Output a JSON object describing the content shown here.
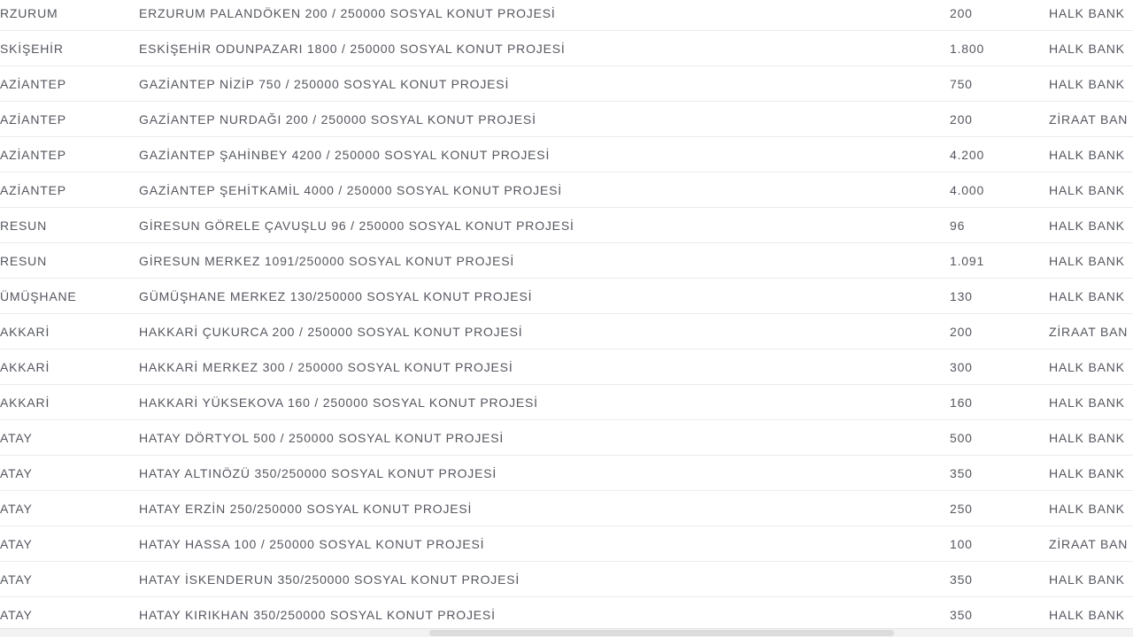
{
  "page": {
    "background_color": "#ffffff",
    "text_color": "#55575f",
    "row_border_color": "#ebebeb"
  },
  "table": {
    "description": "Social housing project list (cropped view): province, project name, unit count, bank",
    "rows": [
      {
        "city": "RZURUM",
        "project": "ERZURUM PALANDÖKEN 200 / 250000 SOSYAL KONUT PROJESİ",
        "count": "200",
        "bank": "HALK BANK"
      },
      {
        "city": "SKİŞEHİR",
        "project": "ESKİŞEHİR ODUNPAZARI 1800 / 250000 SOSYAL KONUT PROJESİ",
        "count": "1.800",
        "bank": "HALK BANK"
      },
      {
        "city": "AZİANTEP",
        "project": "GAZİANTEP NİZİP 750 / 250000 SOSYAL KONUT PROJESİ",
        "count": "750",
        "bank": "HALK BANK"
      },
      {
        "city": "AZİANTEP",
        "project": "GAZİANTEP NURDAĞI 200 / 250000 SOSYAL KONUT PROJESİ",
        "count": "200",
        "bank": "ZİRAAT BAN"
      },
      {
        "city": "AZİANTEP",
        "project": "GAZİANTEP ŞAHİNBEY 4200 / 250000 SOSYAL KONUT PROJESİ",
        "count": "4.200",
        "bank": "HALK BANK"
      },
      {
        "city": "AZİANTEP",
        "project": "GAZİANTEP ŞEHİTKAMİL 4000 / 250000 SOSYAL KONUT PROJESİ",
        "count": "4.000",
        "bank": "HALK BANK"
      },
      {
        "city": "RESUN",
        "project": "GİRESUN GÖRELE ÇAVUŞLU 96 / 250000 SOSYAL KONUT PROJESİ",
        "count": "96",
        "bank": "HALK BANK"
      },
      {
        "city": "RESUN",
        "project": "GİRESUN MERKEZ 1091/250000 SOSYAL KONUT PROJESİ",
        "count": "1.091",
        "bank": "HALK BANK"
      },
      {
        "city": "ÜMÜŞHANE",
        "project": "GÜMÜŞHANE MERKEZ 130/250000 SOSYAL KONUT PROJESİ",
        "count": "130",
        "bank": "HALK BANK"
      },
      {
        "city": "AKKARİ",
        "project": "HAKKARİ ÇUKURCA 200 / 250000 SOSYAL KONUT PROJESİ",
        "count": "200",
        "bank": "ZİRAAT BAN"
      },
      {
        "city": "AKKARİ",
        "project": "HAKKARİ MERKEZ 300 / 250000 SOSYAL KONUT PROJESİ",
        "count": "300",
        "bank": "HALK BANK"
      },
      {
        "city": "AKKARİ",
        "project": "HAKKARİ YÜKSEKOVA 160 / 250000 SOSYAL KONUT PROJESİ",
        "count": "160",
        "bank": "HALK BANK"
      },
      {
        "city": "ATAY",
        "project": "HATAY DÖRTYOL 500 / 250000 SOSYAL KONUT PROJESİ",
        "count": "500",
        "bank": "HALK BANK"
      },
      {
        "city": "ATAY",
        "project": "HATAY ALTINÖZÜ 350/250000 SOSYAL KONUT PROJESİ",
        "count": "350",
        "bank": "HALK BANK"
      },
      {
        "city": "ATAY",
        "project": "HATAY ERZİN 250/250000 SOSYAL KONUT PROJESİ",
        "count": "250",
        "bank": "HALK BANK"
      },
      {
        "city": "ATAY",
        "project": "HATAY HASSA 100 / 250000 SOSYAL KONUT PROJESİ",
        "count": "100",
        "bank": "ZİRAAT BAN"
      },
      {
        "city": "ATAY",
        "project": "HATAY İSKENDERUN 350/250000 SOSYAL KONUT PROJESİ",
        "count": "350",
        "bank": "HALK BANK"
      },
      {
        "city": "ATAY",
        "project": "HATAY KIRIKHAN 350/250000 SOSYAL KONUT PROJESİ",
        "count": "350",
        "bank": "HALK BANK"
      }
    ]
  },
  "scrollbar": {
    "orientation": "horizontal",
    "track_color": "#f2f2f2",
    "thumb_color": "#dcdcdc"
  }
}
